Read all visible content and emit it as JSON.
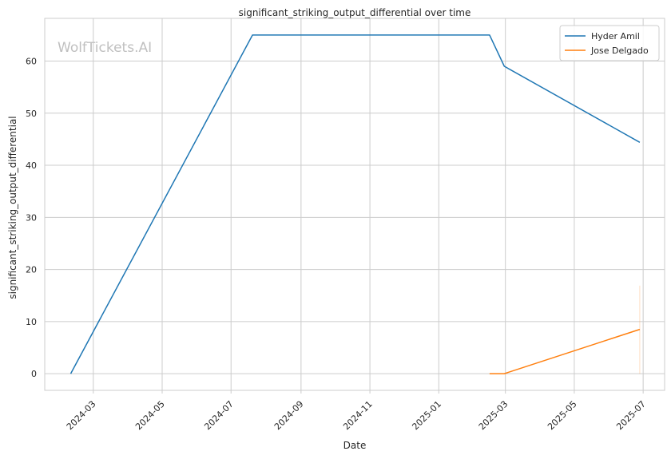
{
  "watermark": "WolfTickets.AI",
  "chart_data": {
    "type": "line",
    "title": "significant_striking_output_differential over time",
    "xlabel": "Date",
    "ylabel": "significant_striking_output_differential",
    "x_range": [
      "2024-01-18",
      "2025-07-20"
    ],
    "ylim": [
      -3.2,
      68.2
    ],
    "x_ticks": [
      "2024-03",
      "2024-05",
      "2024-07",
      "2024-09",
      "2024-11",
      "2025-01",
      "2025-03",
      "2025-05",
      "2025-07"
    ],
    "y_ticks": [
      0,
      10,
      20,
      30,
      40,
      50,
      60
    ],
    "grid": true,
    "legend_position": "top-right",
    "series": [
      {
        "name": "Hyder Amil",
        "color": "#1f77b4",
        "points": [
          {
            "x": "2024-02-10",
            "y": 0
          },
          {
            "x": "2024-07-20",
            "y": 65
          },
          {
            "x": "2025-02-15",
            "y": 65
          },
          {
            "x": "2025-02-28",
            "y": 59
          },
          {
            "x": "2025-06-28",
            "y": 44.4
          }
        ]
      },
      {
        "name": "Jose Delgado",
        "color": "#ff7f0e",
        "points": [
          {
            "x": "2025-02-15",
            "y": 0
          },
          {
            "x": "2025-02-28",
            "y": 0
          },
          {
            "x": "2025-06-28",
            "y": 8.5
          }
        ],
        "error_band": {
          "x": "2025-06-28",
          "low": 0,
          "high": 16.9
        }
      }
    ]
  }
}
